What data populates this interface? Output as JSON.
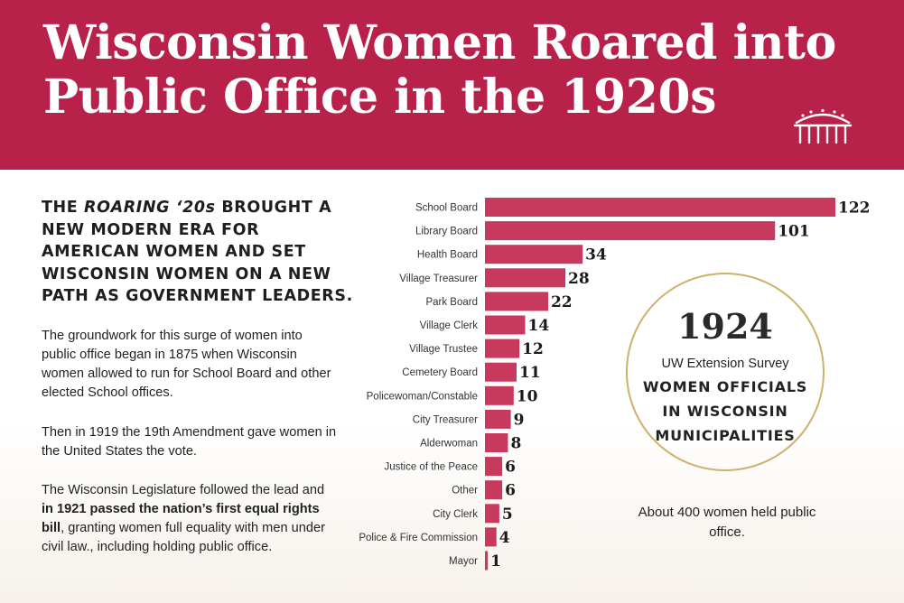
{
  "header": {
    "title": "Wisconsin Women Roared into Public Office in the 1920s",
    "logo_icon": "capitol-arch-icon",
    "background": "#b8214a"
  },
  "intro": {
    "lead_prefix": "THE ",
    "lead_em": "ROARING ‘20s",
    "lead_rest": " BROUGHT A NEW MODERN ERA FOR AMERICAN WOMEN AND SET WISCONSIN WOMEN ON A NEW PATH AS GOVERNMENT LEADERS.",
    "paragraph1": "The groundwork for this surge of women into public office began in 1875 when Wisconsin women allowed to run for School Board and other elected School offices.",
    "paragraph2": "Then in 1919 the 19th Amendment gave women in the United States the vote.",
    "paragraph3_pre": "The Wisconsin Legislature followed the lead and ",
    "paragraph3_bold": "in 1921 passed the nation’s first equal rights bill",
    "paragraph3_post": ", granting women full equality with men under civil law., including holding public office."
  },
  "callout": {
    "year": "1924",
    "source": "UW Extension Survey",
    "heading_lines": [
      "WOMEN OFFICIALS",
      "IN WISCONSIN",
      "MUNICIPALITIES"
    ],
    "footnote": "About 400 women held public office.",
    "ring_color": "#cdb06a"
  },
  "chart_data": {
    "type": "bar",
    "orientation": "horizontal",
    "title": "1924 UW Extension Survey: Women Officials in Wisconsin Municipalities",
    "categories": [
      "School Board",
      "Library Board",
      "Health Board",
      "Village Treasurer",
      "Park Board",
      "Village Clerk",
      "Village Trustee",
      "Cemetery Board",
      "Policewoman/Constable",
      "City Treasurer",
      "Alderwoman",
      "Justice of the Peace",
      "Other",
      "City Clerk",
      "Police & Fire Commission",
      "Mayor"
    ],
    "values": [
      122,
      101,
      34,
      28,
      22,
      14,
      12,
      11,
      10,
      9,
      8,
      6,
      6,
      5,
      4,
      1
    ],
    "xlim": [
      0,
      122
    ],
    "grid": false,
    "bar_color": "#c7395d"
  }
}
